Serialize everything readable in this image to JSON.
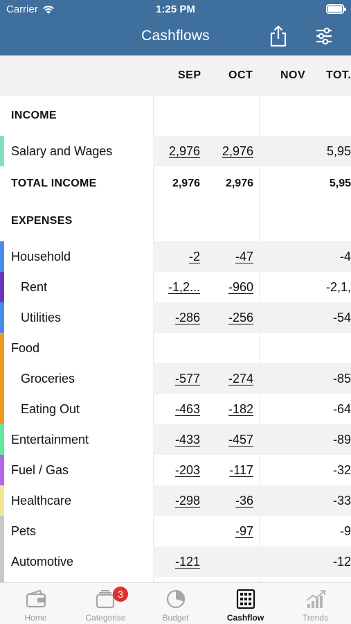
{
  "status": {
    "carrier": "Carrier",
    "time": "1:25 PM"
  },
  "nav": {
    "title": "Cashflows",
    "share_icon": "share-icon",
    "filter_icon": "sliders-icon"
  },
  "columns": {
    "sep": "SEP",
    "oct": "OCT",
    "nov": "NOV",
    "total": "TOT."
  },
  "income": {
    "header": "INCOME",
    "salary": {
      "label": "Salary and Wages",
      "sep": "2,976",
      "oct": "2,976",
      "total": "5,95",
      "color": "#7fe0c6"
    },
    "total": {
      "label": "TOTAL INCOME",
      "sep": "2,976",
      "oct": "2,976",
      "total": "5,95"
    }
  },
  "expenses": {
    "header": "EXPENSES",
    "household": {
      "label": "Household",
      "sep": "-2",
      "oct": "-47",
      "total": "-4",
      "color": "#4a8be8"
    },
    "rent": {
      "label": "Rent",
      "sep": "-1,2...",
      "oct": "-960",
      "total": "-2,1,",
      "color": "#6a36b8"
    },
    "utilities": {
      "label": "Utilities",
      "sep": "-286",
      "oct": "-256",
      "total": "-54",
      "color": "#4a8be8"
    },
    "food": {
      "label": "Food",
      "color": "#f39a1e"
    },
    "groceries": {
      "label": "Groceries",
      "sep": "-577",
      "oct": "-274",
      "total": "-85",
      "color": "#f39a1e"
    },
    "eating_out": {
      "label": "Eating Out",
      "sep": "-463",
      "oct": "-182",
      "total": "-64",
      "color": "#f39a1e"
    },
    "entertainment": {
      "label": "Entertainment",
      "sep": "-433",
      "oct": "-457",
      "total": "-89",
      "color": "#5fe8a0"
    },
    "fuel": {
      "label": "Fuel / Gas",
      "sep": "-203",
      "oct": "-117",
      "total": "-32",
      "color": "#b468f0"
    },
    "healthcare": {
      "label": "Healthcare",
      "sep": "-298",
      "oct": "-36",
      "total": "-33",
      "color": "#f1e58e"
    },
    "pets": {
      "label": "Pets",
      "sep": "",
      "oct": "-97",
      "total": "-9",
      "color": "#c8c8c8"
    },
    "automotive": {
      "label": "Automotive",
      "sep": "-121",
      "oct": "",
      "total": "-12",
      "color": "#c8c8c8"
    }
  },
  "tabs": {
    "home": "Home",
    "categorise": "Categorise",
    "categorise_badge": "3",
    "budget": "Budget",
    "cashflow": "Cashflow",
    "trends": "Trends",
    "active": "cashflow"
  }
}
